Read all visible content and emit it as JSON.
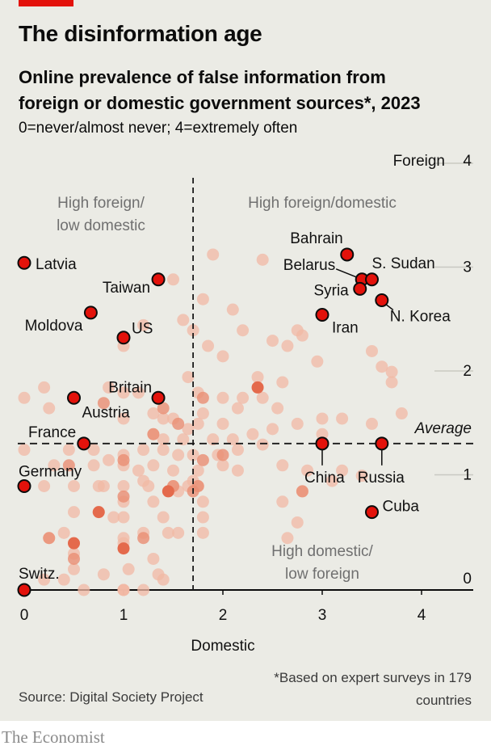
{
  "header": {
    "title": "The disinformation age",
    "subtitle_line1": "Online prevalence of false information from",
    "subtitle_line2": "foreign or domestic government sources*, 2023",
    "scale_note": "0=never/almost never; 4=extremely often"
  },
  "footer": {
    "source": "Source: Digital Society Project",
    "footnote": "*Based on expert surveys in 179 countries",
    "brand": "The Economist"
  },
  "colors": {
    "background": "#ebebe5",
    "accent": "#e3120b",
    "highlight_fill": "#e3120b",
    "faint_point": "#f2b8a4",
    "medium_point": "#ea8d73",
    "strong_point": "#e46a4c"
  },
  "chart_data": {
    "type": "scatter",
    "xlabel": "Domestic",
    "ylabel": "Foreign",
    "xlim": [
      0,
      4.5
    ],
    "ylim": [
      0,
      4
    ],
    "x_ticks": [
      0,
      1,
      2,
      3,
      4
    ],
    "y_ticks": [
      0,
      1,
      2,
      3,
      4
    ],
    "grid": false,
    "averages": {
      "domestic": 1.7,
      "foreign": 1.41,
      "label": "Average"
    },
    "quadrant_labels": {
      "top_left_1": "High foreign/",
      "top_left_2": "low domestic",
      "top_right": "High foreign/domestic",
      "bottom_right_1": "High domestic/",
      "bottom_right_2": "low foreign"
    },
    "highlighted": [
      {
        "name": "Latvia",
        "x": 0.0,
        "y": 3.15
      },
      {
        "name": "Taiwan",
        "x": 1.35,
        "y": 2.99
      },
      {
        "name": "Moldova",
        "x": 0.67,
        "y": 2.67
      },
      {
        "name": "US",
        "x": 1.0,
        "y": 2.43
      },
      {
        "name": "Britain",
        "x": 1.35,
        "y": 1.85
      },
      {
        "name": "Austria",
        "x": 0.5,
        "y": 1.85
      },
      {
        "name": "France",
        "x": 0.6,
        "y": 1.41
      },
      {
        "name": "Germany",
        "x": 0.0,
        "y": 1.0
      },
      {
        "name": "Switz.",
        "x": 0.0,
        "y": 0.0
      },
      {
        "name": "Bahrain",
        "x": 3.25,
        "y": 3.23
      },
      {
        "name": "Belarus",
        "x": 3.4,
        "y": 2.99
      },
      {
        "name": "S. Sudan",
        "x": 3.5,
        "y": 2.99
      },
      {
        "name": "Syria",
        "x": 3.38,
        "y": 2.9
      },
      {
        "name": "N. Korea",
        "x": 3.6,
        "y": 2.79
      },
      {
        "name": "Iran",
        "x": 3.0,
        "y": 2.65
      },
      {
        "name": "China",
        "x": 3.0,
        "y": 1.41
      },
      {
        "name": "Russia",
        "x": 3.6,
        "y": 1.41
      },
      {
        "name": "Cuba",
        "x": 3.5,
        "y": 0.75
      }
    ],
    "others": [
      [
        1.9,
        3.23
      ],
      [
        2.4,
        3.18
      ],
      [
        1.5,
        2.99
      ],
      [
        1.2,
        2.55
      ],
      [
        1.8,
        2.8
      ],
      [
        2.1,
        2.7
      ],
      [
        1.6,
        2.6
      ],
      [
        1.7,
        2.5
      ],
      [
        2.2,
        2.5
      ],
      [
        2.75,
        2.5
      ],
      [
        1.85,
        2.35
      ],
      [
        2.5,
        2.4
      ],
      [
        2.65,
        2.35
      ],
      [
        2.8,
        2.45
      ],
      [
        3.5,
        2.3
      ],
      [
        3.6,
        2.15
      ],
      [
        3.7,
        2.1
      ],
      [
        3.7,
        2.0
      ],
      [
        2.0,
        2.25
      ],
      [
        1.0,
        2.35
      ],
      [
        2.35,
        2.05
      ],
      [
        1.65,
        2.05
      ],
      [
        2.6,
        2.0
      ],
      [
        2.95,
        2.2
      ],
      [
        0.2,
        1.95
      ],
      [
        0.85,
        1.95
      ],
      [
        1.0,
        1.9
      ],
      [
        1.15,
        1.9
      ],
      [
        1.3,
        1.7
      ],
      [
        1.75,
        1.9
      ],
      [
        2.0,
        1.85
      ],
      [
        2.2,
        1.85
      ],
      [
        2.4,
        1.85
      ],
      [
        2.55,
        1.75
      ],
      [
        1.8,
        1.7
      ],
      [
        2.15,
        1.75
      ],
      [
        1.75,
        1.6
      ],
      [
        1.65,
        1.55
      ],
      [
        2.0,
        1.6
      ],
      [
        1.4,
        1.65
      ],
      [
        1.5,
        1.65
      ],
      [
        0.0,
        1.85
      ],
      [
        0.25,
        1.75
      ],
      [
        1.0,
        1.65
      ],
      [
        1.3,
        1.5
      ],
      [
        1.4,
        1.45
      ],
      [
        1.6,
        1.45
      ],
      [
        1.9,
        1.45
      ],
      [
        2.1,
        1.45
      ],
      [
        2.3,
        1.5
      ],
      [
        2.4,
        1.4
      ],
      [
        3.0,
        1.65
      ],
      [
        3.2,
        1.65
      ],
      [
        3.5,
        1.6
      ],
      [
        3.8,
        1.7
      ],
      [
        2.75,
        1.6
      ],
      [
        2.5,
        1.55
      ],
      [
        3.0,
        1.5
      ],
      [
        0.0,
        1.35
      ],
      [
        0.45,
        1.35
      ],
      [
        0.7,
        1.35
      ],
      [
        1.0,
        1.3
      ],
      [
        1.2,
        1.35
      ],
      [
        1.4,
        1.35
      ],
      [
        1.55,
        1.3
      ],
      [
        1.7,
        1.3
      ],
      [
        1.95,
        1.3
      ],
      [
        2.15,
        1.35
      ],
      [
        0.3,
        1.2
      ],
      [
        0.7,
        1.2
      ],
      [
        0.85,
        1.25
      ],
      [
        1.0,
        1.2
      ],
      [
        1.15,
        1.15
      ],
      [
        1.3,
        1.2
      ],
      [
        1.5,
        1.15
      ],
      [
        1.75,
        1.15
      ],
      [
        2.0,
        1.2
      ],
      [
        2.15,
        1.15
      ],
      [
        2.6,
        1.2
      ],
      [
        2.85,
        1.15
      ],
      [
        3.1,
        1.05
      ],
      [
        3.2,
        1.15
      ],
      [
        3.4,
        1.1
      ],
      [
        1.7,
        1.05
      ],
      [
        0.5,
        1.0
      ],
      [
        0.75,
        1.0
      ],
      [
        0.8,
        1.0
      ],
      [
        1.0,
        1.0
      ],
      [
        1.25,
        1.0
      ],
      [
        1.5,
        1.0
      ],
      [
        1.65,
        1.0
      ],
      [
        1.75,
        1.0
      ],
      [
        2.8,
        0.95
      ],
      [
        0.2,
        1.0
      ],
      [
        1.2,
        1.05
      ],
      [
        1.55,
        0.95
      ],
      [
        2.6,
        0.85
      ],
      [
        1.0,
        0.85
      ],
      [
        1.3,
        0.85
      ],
      [
        1.8,
        0.85
      ],
      [
        0.5,
        0.75
      ],
      [
        0.75,
        0.75
      ],
      [
        0.9,
        0.7
      ],
      [
        1.4,
        0.7
      ],
      [
        1.8,
        0.7
      ],
      [
        1.0,
        0.7
      ],
      [
        2.75,
        0.65
      ],
      [
        1.45,
        0.55
      ],
      [
        0.4,
        0.55
      ],
      [
        1.2,
        0.55
      ],
      [
        1.55,
        0.55
      ],
      [
        1.8,
        0.55
      ],
      [
        2.65,
        0.5
      ],
      [
        0.5,
        0.45
      ],
      [
        0.25,
        0.5
      ],
      [
        1.0,
        0.5
      ],
      [
        1.0,
        0.45
      ],
      [
        0.5,
        0.35
      ],
      [
        1.3,
        0.3
      ],
      [
        0.5,
        0.2
      ],
      [
        0.2,
        0.1
      ],
      [
        0.4,
        0.1
      ],
      [
        0.8,
        0.15
      ],
      [
        1.05,
        0.2
      ],
      [
        1.35,
        0.15
      ],
      [
        1.4,
        0.1
      ],
      [
        1.0,
        0.0
      ],
      [
        1.0,
        0.0
      ],
      [
        0.6,
        0.0
      ],
      [
        1.0,
        0.0
      ],
      [
        1.2,
        0.0
      ]
    ],
    "strong_others": [
      [
        2.35,
        1.95
      ],
      [
        0.75,
        0.75
      ],
      [
        1.0,
        0.4
      ],
      [
        1.45,
        0.95
      ],
      [
        0.5,
        0.45
      ]
    ],
    "medium_others": [
      [
        1.8,
        1.85
      ],
      [
        1.4,
        1.75
      ],
      [
        0.8,
        1.8
      ],
      [
        1.55,
        1.6
      ],
      [
        1.3,
        1.5
      ],
      [
        2.0,
        1.3
      ],
      [
        1.8,
        1.25
      ],
      [
        1.0,
        1.25
      ],
      [
        0.45,
        1.2
      ],
      [
        1.5,
        1.0
      ],
      [
        1.75,
        1.0
      ],
      [
        1.7,
        0.95
      ],
      [
        2.8,
        0.95
      ],
      [
        1.0,
        0.9
      ],
      [
        0.25,
        0.5
      ],
      [
        0.5,
        0.3
      ],
      [
        1.2,
        0.5
      ],
      [
        0.0,
        0.0
      ]
    ]
  }
}
